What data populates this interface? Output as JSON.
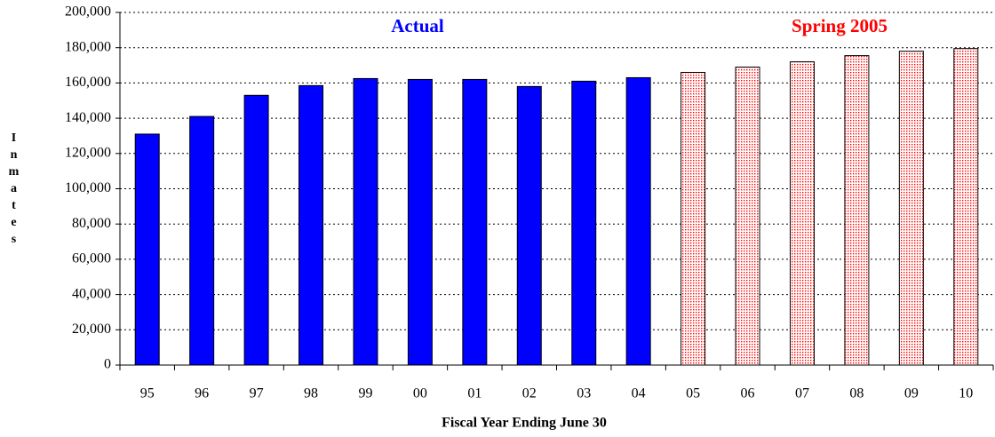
{
  "chart_data": {
    "type": "bar",
    "x_label": "Fiscal Year Ending June 30",
    "y_label": "Inmates",
    "categories": [
      "95",
      "96",
      "97",
      "98",
      "99",
      "00",
      "01",
      "02",
      "03",
      "04",
      "05",
      "06",
      "07",
      "08",
      "09",
      "10"
    ],
    "series": [
      {
        "name": "Actual",
        "color": "#0000ff",
        "values": [
          131000,
          141000,
          153000,
          158500,
          162500,
          162000,
          162000,
          158000,
          161000,
          163000,
          null,
          null,
          null,
          null,
          null,
          null
        ]
      },
      {
        "name": "Spring 2005",
        "color": "#ff0000",
        "values": [
          null,
          null,
          null,
          null,
          null,
          null,
          null,
          null,
          null,
          null,
          166000,
          169000,
          172000,
          175500,
          178000,
          179500
        ]
      }
    ],
    "ylim": [
      0,
      200000
    ],
    "yticks": [
      0,
      {
        "value": 20000,
        "label": "20,000"
      },
      {
        "value": 40000,
        "label": "40,000"
      },
      {
        "value": 60000,
        "label": "60,000"
      },
      {
        "value": 80000,
        "label": "80,000"
      },
      {
        "value": 100000,
        "label": "100,000"
      },
      {
        "value": 120000,
        "label": "120,000"
      },
      {
        "value": 140000,
        "label": "140,000"
      },
      {
        "value": 160000,
        "label": "160,000"
      },
      {
        "value": 180000,
        "label": "180,000"
      },
      {
        "value": 200000,
        "label": "200,000"
      }
    ],
    "grid": true
  }
}
